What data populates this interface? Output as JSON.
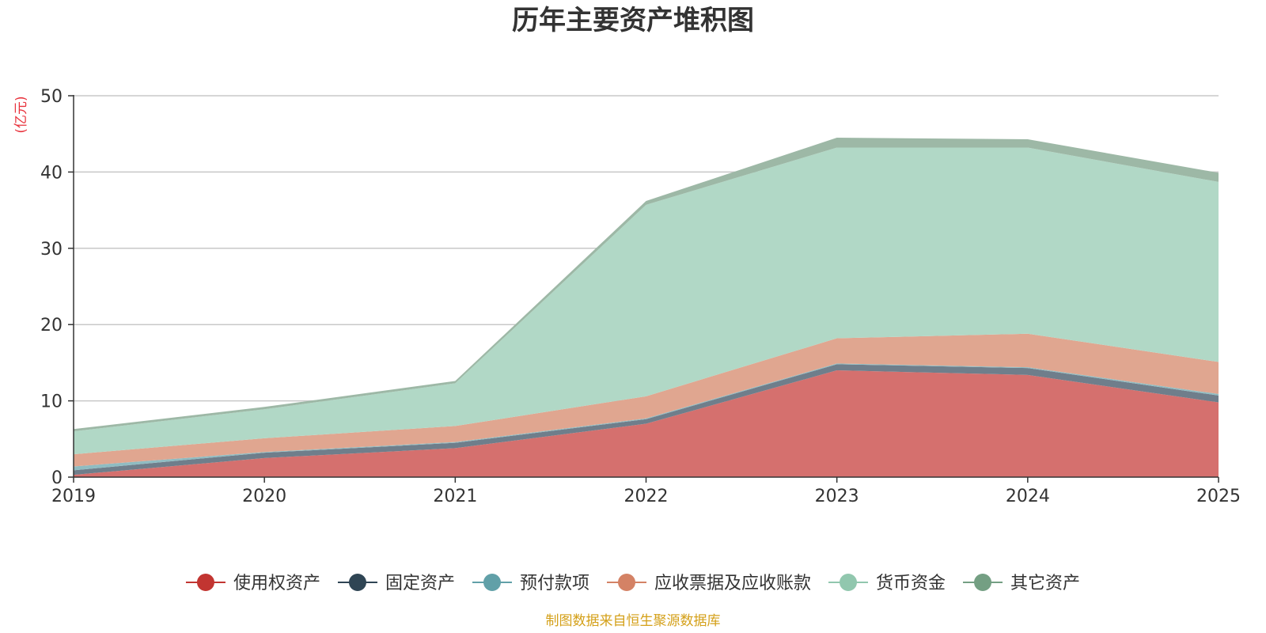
{
  "chart_data": {
    "type": "area",
    "stacked": true,
    "title": "历年主要资产堆积图",
    "ylabel": "(亿元)",
    "xlabel": "",
    "ylim": [
      0,
      50
    ],
    "yticks": [
      0,
      10,
      20,
      30,
      40,
      50
    ],
    "categories": [
      "2019",
      "2020",
      "2021",
      "2022",
      "2023",
      "2024",
      "2025"
    ],
    "series": [
      {
        "name": "使用权资产",
        "color": "#c23531",
        "fill": "#d5706e",
        "values": [
          0.3,
          2.5,
          3.8,
          7.0,
          14.0,
          13.4,
          9.8
        ]
      },
      {
        "name": "固定资产",
        "color": "#2f4554",
        "fill": "#6f7e8b",
        "values": [
          0.6,
          0.7,
          0.7,
          0.6,
          0.8,
          0.9,
          0.9
        ]
      },
      {
        "name": "预付款项",
        "color": "#61a0a8",
        "fill": "#8fbcc2",
        "values": [
          0.5,
          0.1,
          0.1,
          0.1,
          0.1,
          0.1,
          0.2
        ]
      },
      {
        "name": "应收票据及应收账款",
        "color": "#d48265",
        "fill": "#e0a690",
        "values": [
          1.6,
          1.8,
          2.1,
          2.9,
          3.3,
          4.4,
          4.2
        ]
      },
      {
        "name": "货币资金",
        "color": "#91c7ae",
        "fill": "#b1d8c6",
        "values": [
          3.0,
          3.8,
          5.6,
          25.1,
          25.0,
          24.4,
          23.6
        ]
      },
      {
        "name": "其它资产",
        "color": "#749f83",
        "fill": "#9db8a6",
        "values": [
          0.3,
          0.3,
          0.3,
          0.5,
          1.3,
          1.1,
          1.2
        ]
      }
    ],
    "grid": true,
    "legend_position": "bottom-center"
  },
  "source_note": "制图数据来自恒生聚源数据库"
}
